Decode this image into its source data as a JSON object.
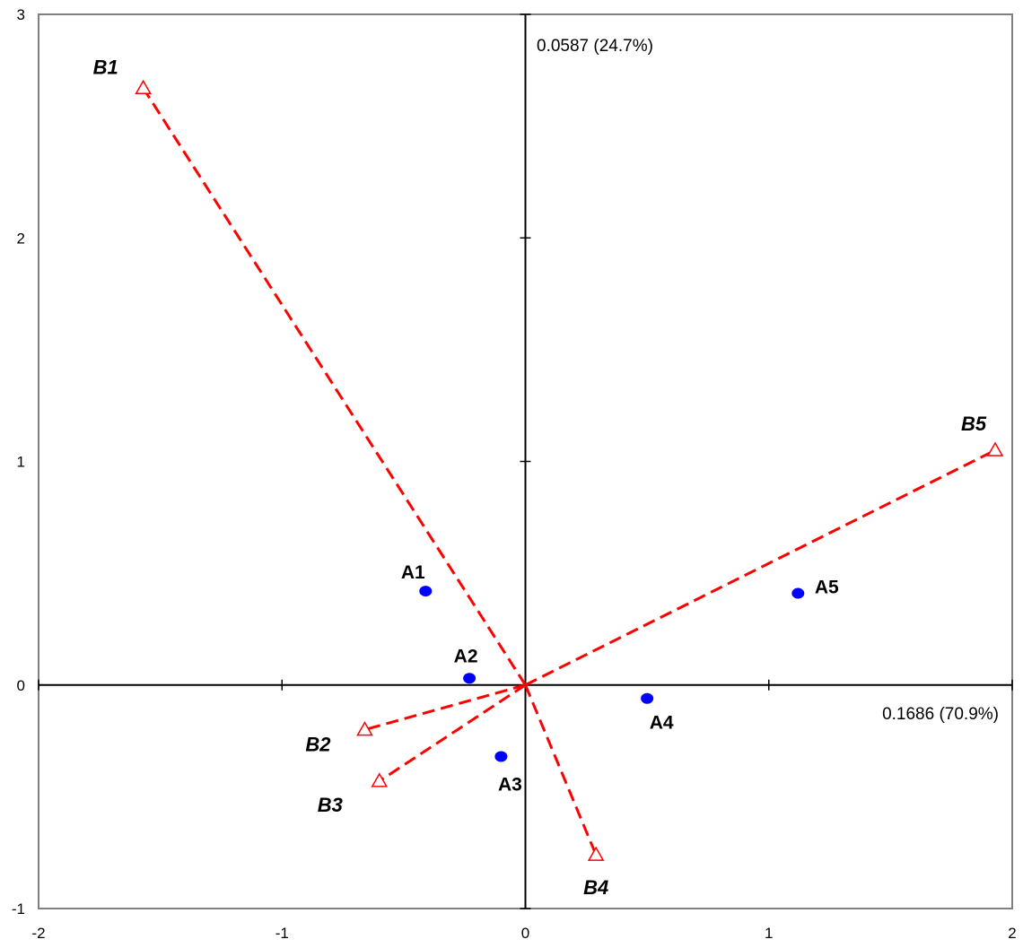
{
  "chart_data": {
    "type": "scatter",
    "title": "",
    "xlabel": "0.1686 (70.9%)",
    "ylabel": "0.0587 (24.7%)",
    "xlim": [
      -2,
      2
    ],
    "ylim": [
      -1,
      3
    ],
    "x_ticks": [
      -2,
      -1,
      0,
      1,
      2
    ],
    "y_ticks": [
      -1,
      0,
      1,
      2,
      3
    ],
    "x_tick_labels": [
      "-2",
      "-1",
      "0",
      "1",
      "2"
    ],
    "y_tick_labels": [
      "-1",
      "0",
      "1",
      "2",
      "3"
    ],
    "grid": false,
    "legend": "none",
    "colors": {
      "points": "#0000ff",
      "vectors": "#ff0000",
      "axes": "#000000",
      "frame": "#808080"
    },
    "points": [
      {
        "label": "A1",
        "x": -0.41,
        "y": 0.42
      },
      {
        "label": "A2",
        "x": -0.23,
        "y": 0.03
      },
      {
        "label": "A3",
        "x": -0.1,
        "y": -0.32
      },
      {
        "label": "A4",
        "x": 0.5,
        "y": -0.06
      },
      {
        "label": "A5",
        "x": 1.12,
        "y": 0.41
      }
    ],
    "vectors": [
      {
        "label": "B1",
        "x": -1.57,
        "y": 2.67
      },
      {
        "label": "B2",
        "x": -0.66,
        "y": -0.2
      },
      {
        "label": "B3",
        "x": -0.6,
        "y": -0.43
      },
      {
        "label": "B4",
        "x": 0.29,
        "y": -0.76
      },
      {
        "label": "B5",
        "x": 1.93,
        "y": 1.05
      }
    ]
  }
}
